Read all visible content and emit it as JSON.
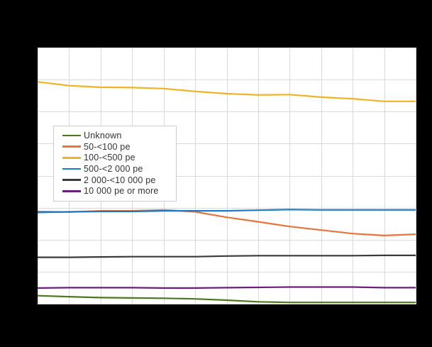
{
  "page": {
    "background_color": "#000000",
    "plot_background_color": "#ffffff",
    "grid_color": "#d9d9d9",
    "title": "",
    "x_tick_labels_visible": false,
    "y_tick_labels_visible": false
  },
  "chart_data": {
    "type": "line",
    "title": "",
    "xlabel": "",
    "ylabel": "",
    "x_point_count": 13,
    "x": [
      0,
      1,
      2,
      3,
      4,
      5,
      6,
      7,
      8,
      9,
      10,
      11,
      12
    ],
    "ylim": [
      0,
      8
    ],
    "y_unit": "gridline-spacing units (tick labels not visible in image)",
    "grid": true,
    "legend_position": "upper-left-inside",
    "series": [
      {
        "name": "Unknown",
        "color": "#4a7a1e",
        "values": [
          0.25,
          0.22,
          0.19,
          0.18,
          0.17,
          0.15,
          0.11,
          0.06,
          0.04,
          0.04,
          0.04,
          0.04,
          0.04
        ]
      },
      {
        "name": "50-<100 pe",
        "color": "#e8743b",
        "values": [
          2.88,
          2.86,
          2.9,
          2.9,
          2.93,
          2.87,
          2.7,
          2.56,
          2.41,
          2.3,
          2.19,
          2.13,
          2.17
        ]
      },
      {
        "name": "100-<500 pe",
        "color": "#f0b323",
        "values": [
          6.93,
          6.81,
          6.76,
          6.75,
          6.72,
          6.63,
          6.56,
          6.52,
          6.53,
          6.45,
          6.4,
          6.32,
          6.32
        ]
      },
      {
        "name": "500-<2 000 pe",
        "color": "#1d7ac9",
        "values": [
          2.85,
          2.87,
          2.88,
          2.88,
          2.9,
          2.9,
          2.9,
          2.92,
          2.94,
          2.93,
          2.93,
          2.93,
          2.93
        ]
      },
      {
        "name": "2 000-<10 000 pe",
        "color": "#3a3a3a",
        "values": [
          1.45,
          1.45,
          1.46,
          1.47,
          1.47,
          1.47,
          1.49,
          1.5,
          1.5,
          1.5,
          1.5,
          1.51,
          1.51
        ]
      },
      {
        "name": "10 000 pe or more",
        "color": "#6e1e7e",
        "values": [
          0.49,
          0.5,
          0.5,
          0.5,
          0.49,
          0.49,
          0.5,
          0.51,
          0.52,
          0.52,
          0.52,
          0.5,
          0.5
        ]
      }
    ]
  }
}
